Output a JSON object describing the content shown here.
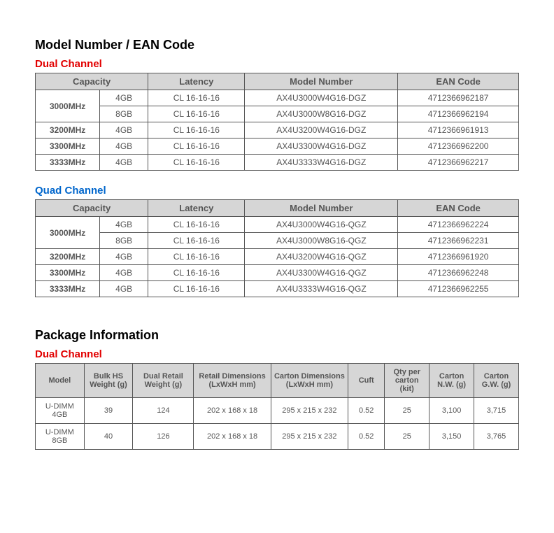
{
  "sections": {
    "model_title": "Model Number / EAN Code",
    "package_title": "Package Information",
    "dual_label": "Dual Channel",
    "quad_label": "Quad Channel"
  },
  "model_headers": {
    "capacity": "Capacity",
    "latency": "Latency",
    "model_number": "Model Number",
    "ean_code": "EAN Code"
  },
  "dual_rows": [
    {
      "speed": "3000MHz",
      "cap": "4GB",
      "lat": "CL 16-16-16",
      "model": "AX4U3000W4G16-DGZ",
      "ean": "4712366962187"
    },
    {
      "speed": "",
      "cap": "8GB",
      "lat": "CL 16-16-16",
      "model": "AX4U3000W8G16-DGZ",
      "ean": "4712366962194"
    },
    {
      "speed": "3200MHz",
      "cap": "4GB",
      "lat": "CL 16-16-16",
      "model": "AX4U3200W4G16-DGZ",
      "ean": "4712366961913"
    },
    {
      "speed": "3300MHz",
      "cap": "4GB",
      "lat": "CL 16-16-16",
      "model": "AX4U3300W4G16-DGZ",
      "ean": "4712366962200"
    },
    {
      "speed": "3333MHz",
      "cap": "4GB",
      "lat": "CL 16-16-16",
      "model": "AX4U3333W4G16-DGZ",
      "ean": "4712366962217"
    }
  ],
  "quad_rows": [
    {
      "speed": "3000MHz",
      "cap": "4GB",
      "lat": "CL 16-16-16",
      "model": "AX4U3000W4G16-QGZ",
      "ean": "4712366962224"
    },
    {
      "speed": "",
      "cap": "8GB",
      "lat": "CL 16-16-16",
      "model": "AX4U3000W8G16-QGZ",
      "ean": "4712366962231"
    },
    {
      "speed": "3200MHz",
      "cap": "4GB",
      "lat": "CL 16-16-16",
      "model": "AX4U3200W4G16-QGZ",
      "ean": "4712366961920"
    },
    {
      "speed": "3300MHz",
      "cap": "4GB",
      "lat": "CL 16-16-16",
      "model": "AX4U3300W4G16-QGZ",
      "ean": "4712366962248"
    },
    {
      "speed": "3333MHz",
      "cap": "4GB",
      "lat": "CL 16-16-16",
      "model": "AX4U3333W4G16-QGZ",
      "ean": "4712366962255"
    }
  ],
  "package_headers": {
    "model": "Model",
    "bulk_hs": "Bulk HS Weight (g)",
    "dual_retail": "Dual Retail Weight (g)",
    "retail_dim": "Retail Dimensions (LxWxH mm)",
    "carton_dim": "Carton Dimensions (LxWxH mm)",
    "cuft": "Cuft",
    "qty": "Qty per carton (kit)",
    "nw": "Carton N.W. (g)",
    "gw": "Carton G.W. (g)"
  },
  "package_rows": [
    {
      "model": "U-DIMM 4GB",
      "bulk": "39",
      "retail_w": "124",
      "retail_d": "202 x 168 x 18",
      "carton_d": "295 x 215 x 232",
      "cuft": "0.52",
      "qty": "25",
      "nw": "3,100",
      "gw": "3,715"
    },
    {
      "model": "U-DIMM 8GB",
      "bulk": "40",
      "retail_w": "126",
      "retail_d": "202 x 168 x 18",
      "carton_d": "295 x 215 x 232",
      "cuft": "0.52",
      "qty": "25",
      "nw": "3,150",
      "gw": "3,765"
    }
  ]
}
